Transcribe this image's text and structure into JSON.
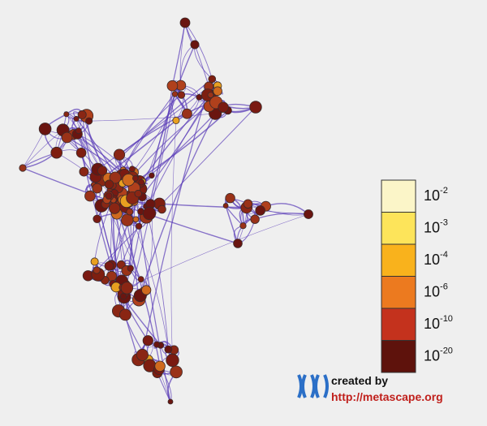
{
  "legend": {
    "items": [
      {
        "base": "10",
        "exponent": "-2",
        "color": "#fbf5c8"
      },
      {
        "base": "10",
        "exponent": "-3",
        "color": "#fde45a"
      },
      {
        "base": "10",
        "exponent": "-4",
        "color": "#f9b21c"
      },
      {
        "base": "10",
        "exponent": "-6",
        "color": "#ec7a1f"
      },
      {
        "base": "10",
        "exponent": "-10",
        "color": "#c4321d"
      },
      {
        "base": "10",
        "exponent": "-20",
        "color": "#5e120c"
      }
    ]
  },
  "watermark": {
    "line1": "created by",
    "line2": "http://metascape.org"
  }
}
